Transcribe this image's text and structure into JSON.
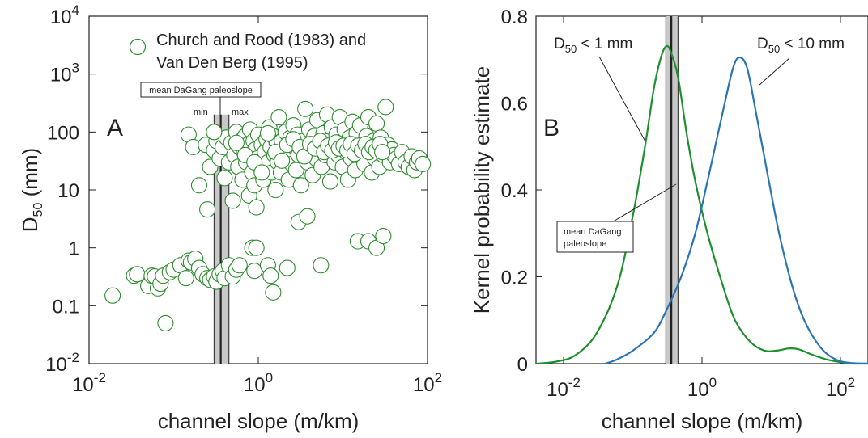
{
  "chart_data": [
    {
      "panel": "A",
      "type": "scatter",
      "xlabel": "channel slope (m/km)",
      "ylabel_main": "D",
      "ylabel_sub": "50",
      "ylabel_unit": " (mm)",
      "xscale": "log",
      "yscale": "log",
      "xlim": [
        0.01,
        100
      ],
      "ylim": [
        0.01,
        10000
      ],
      "x_ticks": [
        {
          "value": 0.01,
          "base": "10",
          "exp": "-2"
        },
        {
          "value": 1,
          "base": "10",
          "exp": "0"
        },
        {
          "value": 100,
          "base": "10",
          "exp": "2"
        }
      ],
      "y_ticks": [
        {
          "value": 0.01,
          "base": "10",
          "exp": "-2"
        },
        {
          "value": 0.1,
          "label": "0.1"
        },
        {
          "value": 1,
          "label": "1"
        },
        {
          "value": 10,
          "label": "10"
        },
        {
          "value": 100,
          "label": "100"
        },
        {
          "value": 1000,
          "base": "10",
          "exp": "3"
        },
        {
          "value": 10000,
          "base": "10",
          "exp": "4"
        }
      ],
      "legend": {
        "entries": [
          "Church and Rood (1983) and",
          "Van Den Berg (1995)"
        ],
        "marker_color": "#2e8b2e",
        "placement": "top-left"
      },
      "panel_label": "A",
      "paleoslope_band": {
        "label": "mean DaGang paleoslope",
        "min_label": "min",
        "max_label": "max",
        "min": 0.3,
        "max": 0.45,
        "mean": 0.36
      },
      "points": [
        [
          0.019,
          0.15
        ],
        [
          0.034,
          0.33
        ],
        [
          0.037,
          0.35
        ],
        [
          0.05,
          0.22
        ],
        [
          0.055,
          0.33
        ],
        [
          0.06,
          0.32
        ],
        [
          0.065,
          0.2
        ],
        [
          0.07,
          0.24
        ],
        [
          0.075,
          0.33
        ],
        [
          0.08,
          0.05
        ],
        [
          0.09,
          0.38
        ],
        [
          0.1,
          0.42
        ],
        [
          0.12,
          0.5
        ],
        [
          0.14,
          0.3
        ],
        [
          0.15,
          0.6
        ],
        [
          0.16,
          0.56
        ],
        [
          0.18,
          0.65
        ],
        [
          0.2,
          0.45
        ],
        [
          0.22,
          0.35
        ],
        [
          0.25,
          0.3
        ],
        [
          0.27,
          0.28
        ],
        [
          0.3,
          0.32
        ],
        [
          0.32,
          0.26
        ],
        [
          0.35,
          0.35
        ],
        [
          0.38,
          0.4
        ],
        [
          0.4,
          0.3
        ],
        [
          0.45,
          0.5
        ],
        [
          0.5,
          0.32
        ],
        [
          0.55,
          0.42
        ],
        [
          0.6,
          0.5
        ],
        [
          0.85,
          1.0
        ],
        [
          0.9,
          0.4
        ],
        [
          0.95,
          1.0
        ],
        [
          1.3,
          0.5
        ],
        [
          1.4,
          0.33
        ],
        [
          1.5,
          0.17
        ],
        [
          2.2,
          0.45
        ],
        [
          3.0,
          2.8
        ],
        [
          3.8,
          3.5
        ],
        [
          5.5,
          0.5
        ],
        [
          15,
          1.3
        ],
        [
          20,
          1.3
        ],
        [
          25,
          1.0
        ],
        [
          30,
          1.6
        ],
        [
          0.15,
          90
        ],
        [
          0.17,
          55
        ],
        [
          0.2,
          12
        ],
        [
          0.24,
          60
        ],
        [
          0.25,
          4.6
        ],
        [
          0.27,
          25
        ],
        [
          0.3,
          48
        ],
        [
          0.32,
          70
        ],
        [
          0.35,
          35
        ],
        [
          0.38,
          55
        ],
        [
          0.4,
          16
        ],
        [
          0.42,
          80
        ],
        [
          0.45,
          30
        ],
        [
          0.48,
          65
        ],
        [
          0.5,
          6.5
        ],
        [
          0.52,
          40
        ],
        [
          0.55,
          100
        ],
        [
          0.58,
          25
        ],
        [
          0.6,
          55
        ],
        [
          0.62,
          70
        ],
        [
          0.65,
          15
        ],
        [
          0.68,
          45
        ],
        [
          0.7,
          85
        ],
        [
          0.72,
          30
        ],
        [
          0.75,
          60
        ],
        [
          0.78,
          8
        ],
        [
          0.8,
          110
        ],
        [
          0.82,
          40
        ],
        [
          0.85,
          20
        ],
        [
          0.88,
          70
        ],
        [
          0.9,
          12
        ],
        [
          0.92,
          50
        ],
        [
          0.95,
          5
        ],
        [
          0.98,
          35
        ],
        [
          1.0,
          90
        ],
        [
          1.05,
          25
        ],
        [
          1.1,
          60
        ],
        [
          1.15,
          15
        ],
        [
          1.2,
          45
        ],
        [
          1.25,
          75
        ],
        [
          1.3,
          30
        ],
        [
          1.35,
          120
        ],
        [
          1.4,
          55
        ],
        [
          1.45,
          20
        ],
        [
          1.5,
          85
        ],
        [
          1.55,
          40
        ],
        [
          1.6,
          10
        ],
        [
          1.65,
          65
        ],
        [
          1.7,
          30
        ],
        [
          1.75,
          180
        ],
        [
          1.8,
          50
        ],
        [
          1.85,
          20
        ],
        [
          1.9,
          70
        ],
        [
          2.0,
          35
        ],
        [
          2.1,
          100
        ],
        [
          2.2,
          45
        ],
        [
          2.3,
          15
        ],
        [
          2.4,
          80
        ],
        [
          2.5,
          28
        ],
        [
          2.6,
          130
        ],
        [
          2.7,
          55
        ],
        [
          2.8,
          22
        ],
        [
          2.9,
          90
        ],
        [
          3.0,
          40
        ],
        [
          3.2,
          12
        ],
        [
          3.4,
          70
        ],
        [
          3.6,
          250
        ],
        [
          3.8,
          30
        ],
        [
          4.0,
          110
        ],
        [
          4.2,
          48
        ],
        [
          4.4,
          18
        ],
        [
          4.6,
          85
        ],
        [
          4.8,
          35
        ],
        [
          5.0,
          160
        ],
        [
          5.3,
          60
        ],
        [
          5.6,
          25
        ],
        [
          5.9,
          95
        ],
        [
          6.2,
          40
        ],
        [
          6.5,
          200
        ],
        [
          6.8,
          70
        ],
        [
          7.1,
          14
        ],
        [
          7.4,
          120
        ],
        [
          7.7,
          50
        ],
        [
          8.0,
          30
        ],
        [
          8.4,
          90
        ],
        [
          8.8,
          40
        ],
        [
          9.2,
          180
        ],
        [
          9.6,
          65
        ],
        [
          10,
          25
        ],
        [
          10.5,
          110
        ],
        [
          11,
          45
        ],
        [
          11.5,
          15
        ],
        [
          12,
          80
        ],
        [
          12.5,
          35
        ],
        [
          13,
          150
        ],
        [
          13.5,
          55
        ],
        [
          14,
          22
        ],
        [
          14.5,
          95
        ],
        [
          15,
          40
        ],
        [
          16,
          130
        ],
        [
          17,
          60
        ],
        [
          18,
          28
        ],
        [
          19,
          85
        ],
        [
          20,
          180
        ],
        [
          21,
          45
        ],
        [
          22,
          20
        ],
        [
          23,
          70
        ],
        [
          24,
          35
        ],
        [
          25,
          140
        ],
        [
          26,
          55
        ],
        [
          27,
          25
        ],
        [
          28,
          80
        ],
        [
          30,
          40
        ],
        [
          32,
          270
        ],
        [
          34,
          60
        ],
        [
          36,
          30
        ],
        [
          38,
          50
        ],
        [
          40,
          40
        ],
        [
          43,
          35
        ],
        [
          46,
          28
        ],
        [
          50,
          45
        ],
        [
          55,
          30
        ],
        [
          60,
          25
        ],
        [
          65,
          38
        ],
        [
          70,
          22
        ],
        [
          75,
          30
        ],
        [
          80,
          35
        ],
        [
          88,
          28
        ],
        [
          0.3,
          100
        ],
        [
          0.55,
          65
        ],
        [
          0.7,
          40
        ],
        [
          0.9,
          30
        ],
        [
          1.1,
          20
        ],
        [
          1.3,
          95
        ],
        [
          1.6,
          45
        ],
        [
          1.9,
          32
        ],
        [
          2.2,
          60
        ],
        [
          2.6,
          75
        ],
        [
          3.1,
          55
        ],
        [
          3.5,
          38
        ],
        [
          4.1,
          62
        ],
        [
          4.7,
          52
        ],
        [
          5.4,
          70
        ],
        [
          6.0,
          45
        ],
        [
          6.7,
          58
        ],
        [
          7.5,
          48
        ],
        [
          8.3,
          66
        ],
        [
          9.0,
          52
        ],
        [
          10.2,
          58
        ],
        [
          11.3,
          48
        ],
        [
          12.4,
          62
        ],
        [
          13.7,
          42
        ],
        [
          15.2,
          58
        ],
        [
          16.8,
          48
        ],
        [
          18.5,
          62
        ],
        [
          20.4,
          45
        ],
        [
          22.5,
          55
        ],
        [
          24.8,
          48
        ],
        [
          27.4,
          62
        ],
        [
          29.2,
          45
        ]
      ]
    },
    {
      "panel": "B",
      "type": "line",
      "xlabel": "channel slope (m/km)",
      "ylabel": "Kernel probability estimate",
      "xscale": "log",
      "xlim": [
        0.004,
        250
      ],
      "ylim": [
        0,
        0.8
      ],
      "x_ticks": [
        {
          "value": 0.01,
          "base": "10",
          "exp": "-2"
        },
        {
          "value": 1,
          "base": "10",
          "exp": "0"
        },
        {
          "value": 100,
          "base": "10",
          "exp": "2"
        }
      ],
      "y_ticks": [
        {
          "value": 0,
          "label": "0"
        },
        {
          "value": 0.2,
          "label": "0.2"
        },
        {
          "value": 0.4,
          "label": "0.4"
        },
        {
          "value": 0.6,
          "label": "0.6"
        },
        {
          "value": 0.8,
          "label": "0.8"
        }
      ],
      "panel_label": "B",
      "paleoslope_band": {
        "label_line1": "mean DaGang",
        "label_line2": "paleoslope",
        "min": 0.3,
        "max": 0.45,
        "mean": 0.36
      },
      "series": [
        {
          "label_main": "D",
          "label_sub": "50",
          "label_rest": " < 1 mm",
          "color": "#1e8f2e",
          "points": [
            [
              0.004,
              0.0
            ],
            [
              0.008,
              0.005
            ],
            [
              0.015,
              0.02
            ],
            [
              0.03,
              0.07
            ],
            [
              0.06,
              0.18
            ],
            [
              0.1,
              0.34
            ],
            [
              0.15,
              0.5
            ],
            [
              0.2,
              0.63
            ],
            [
              0.25,
              0.7
            ],
            [
              0.3,
              0.73
            ],
            [
              0.35,
              0.72
            ],
            [
              0.45,
              0.66
            ],
            [
              0.6,
              0.53
            ],
            [
              0.8,
              0.42
            ],
            [
              1.2,
              0.3
            ],
            [
              2,
              0.18
            ],
            [
              3,
              0.1
            ],
            [
              5,
              0.05
            ],
            [
              8,
              0.03
            ],
            [
              12,
              0.03
            ],
            [
              18,
              0.035
            ],
            [
              25,
              0.033
            ],
            [
              40,
              0.02
            ],
            [
              70,
              0.008
            ],
            [
              150,
              0.0
            ],
            [
              250,
              0.0
            ]
          ]
        },
        {
          "label_main": "D",
          "label_sub": "50",
          "label_rest": " < 10 mm",
          "color": "#2b74b3",
          "points": [
            [
              0.04,
              0.0
            ],
            [
              0.06,
              0.01
            ],
            [
              0.1,
              0.03
            ],
            [
              0.2,
              0.07
            ],
            [
              0.3,
              0.12
            ],
            [
              0.5,
              0.2
            ],
            [
              0.8,
              0.3
            ],
            [
              1.2,
              0.42
            ],
            [
              2,
              0.58
            ],
            [
              2.8,
              0.68
            ],
            [
              3.5,
              0.705
            ],
            [
              4.5,
              0.68
            ],
            [
              6,
              0.58
            ],
            [
              9,
              0.43
            ],
            [
              13,
              0.3
            ],
            [
              20,
              0.18
            ],
            [
              30,
              0.1
            ],
            [
              50,
              0.04
            ],
            [
              80,
              0.012
            ],
            [
              130,
              0.002
            ],
            [
              250,
              0.0
            ]
          ]
        }
      ]
    }
  ]
}
